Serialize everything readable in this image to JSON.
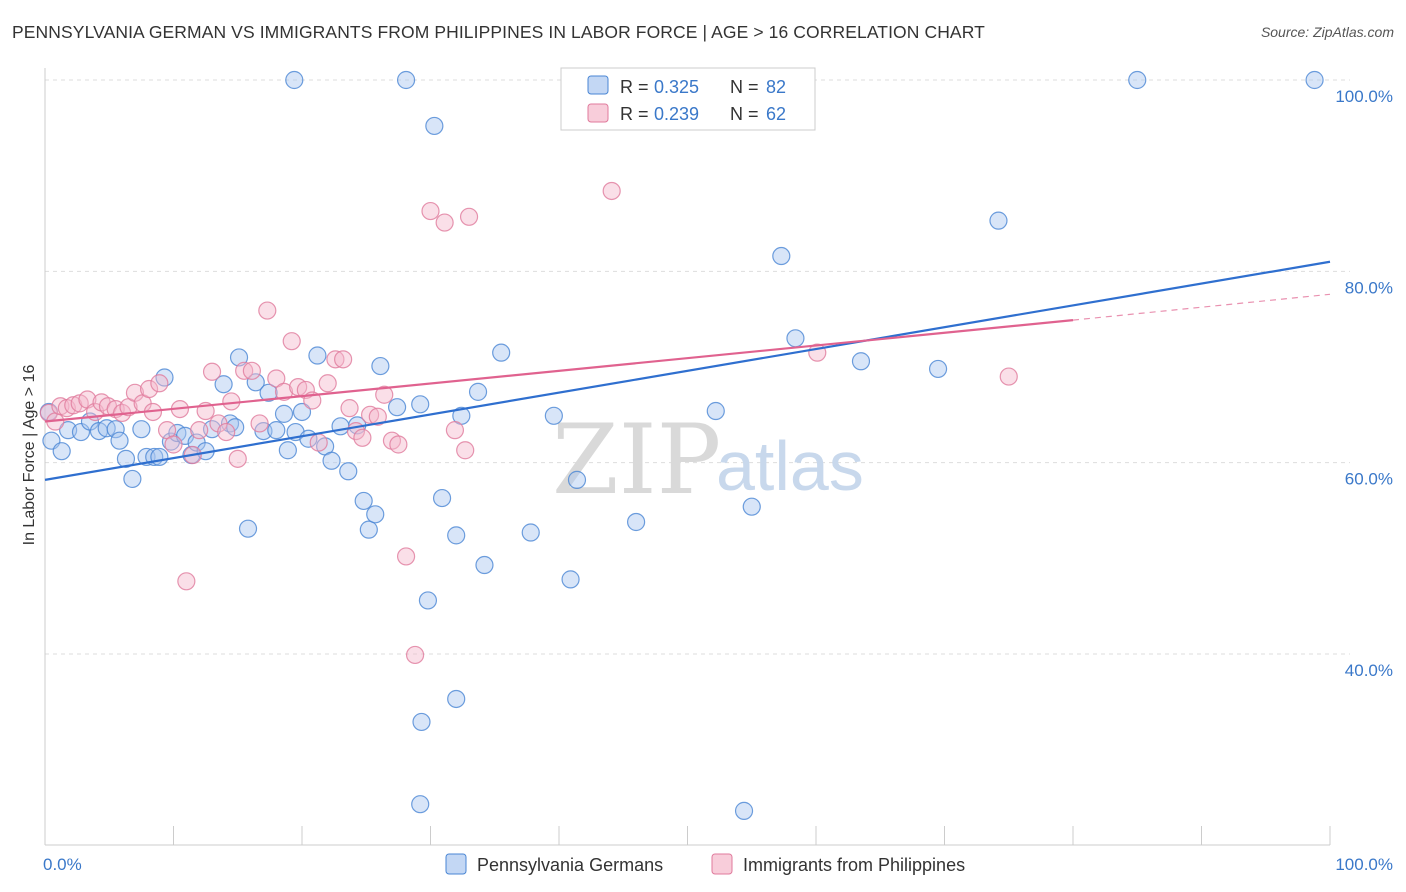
{
  "title": "PENNSYLVANIA GERMAN VS IMMIGRANTS FROM PHILIPPINES IN LABOR FORCE | AGE > 16 CORRELATION CHART",
  "source": "Source: ZipAtlas.com",
  "watermark": {
    "zip": "ZIP",
    "atlas": "atlas"
  },
  "legend": {
    "r_label": "R =",
    "n_label": "N =",
    "rows": [
      {
        "r": "0.325",
        "n": "82"
      },
      {
        "r": "0.239",
        "n": "62"
      }
    ]
  },
  "colors": {
    "blue_fill": "#a9c6ef",
    "blue_stroke": "#4a86d4",
    "blue_line": "#2f6fcf",
    "pink_fill": "#f5b8cb",
    "pink_stroke": "#e07a9c",
    "pink_line": "#e0628f",
    "axis_text": "#3a78c9",
    "grid": "#dddddd"
  },
  "chart_data": {
    "type": "scatter",
    "title": "PENNSYLVANIA GERMAN VS IMMIGRANTS FROM PHILIPPINES IN LABOR FORCE | AGE > 16 CORRELATION CHART",
    "xlabel": "",
    "ylabel": "In Labor Force | Age > 16",
    "xlim": [
      0,
      100
    ],
    "ylim": [
      20,
      102
    ],
    "x_tick_labels": [
      "0.0%",
      "100.0%"
    ],
    "y_tick_labels": [
      "40.0%",
      "60.0%",
      "80.0%",
      "100.0%"
    ],
    "y_ticks": [
      40,
      60,
      80,
      100
    ],
    "grid": true,
    "legend_position": "top-center",
    "series": [
      {
        "name": "Pennsylvania Germans",
        "color": "#4a86d4",
        "trend": {
          "x": [
            0,
            100
          ],
          "y": [
            58.2,
            81.0
          ]
        },
        "points": [
          [
            0.3,
            65.3
          ],
          [
            0.5,
            62.3
          ],
          [
            1.3,
            61.2
          ],
          [
            1.8,
            63.4
          ],
          [
            2.8,
            63.2
          ],
          [
            3.5,
            64.3
          ],
          [
            4.2,
            63.3
          ],
          [
            4.8,
            63.6
          ],
          [
            5.5,
            63.5
          ],
          [
            5.8,
            62.3
          ],
          [
            6.3,
            60.4
          ],
          [
            6.8,
            58.3
          ],
          [
            7.5,
            63.5
          ],
          [
            7.9,
            60.6
          ],
          [
            8.5,
            60.6
          ],
          [
            8.9,
            60.6
          ],
          [
            9.3,
            68.9
          ],
          [
            9.8,
            62.2
          ],
          [
            10.3,
            63.1
          ],
          [
            10.9,
            62.8
          ],
          [
            11.4,
            60.8
          ],
          [
            11.8,
            62.1
          ],
          [
            12.5,
            61.2
          ],
          [
            13.0,
            63.5
          ],
          [
            13.9,
            68.2
          ],
          [
            14.4,
            64.1
          ],
          [
            14.8,
            63.7
          ],
          [
            15.8,
            53.1
          ],
          [
            16.4,
            68.4
          ],
          [
            17.0,
            63.3
          ],
          [
            17.4,
            67.3
          ],
          [
            18.0,
            63.4
          ],
          [
            18.6,
            65.1
          ],
          [
            18.9,
            61.3
          ],
          [
            19.5,
            63.2
          ],
          [
            20.0,
            65.3
          ],
          [
            20.5,
            62.5
          ],
          [
            21.2,
            71.2
          ],
          [
            21.8,
            61.7
          ],
          [
            22.3,
            60.2
          ],
          [
            23.0,
            63.8
          ],
          [
            23.6,
            59.1
          ],
          [
            24.3,
            63.9
          ],
          [
            24.8,
            56.0
          ],
          [
            25.2,
            53.0
          ],
          [
            25.7,
            54.6
          ],
          [
            26.1,
            70.1
          ],
          [
            27.4,
            65.8
          ],
          [
            28.1,
            100.0
          ],
          [
            29.2,
            66.1
          ],
          [
            29.8,
            45.6
          ],
          [
            30.3,
            95.2
          ],
          [
            30.9,
            56.3
          ],
          [
            32.0,
            52.4
          ],
          [
            32.4,
            64.9
          ],
          [
            33.7,
            67.4
          ],
          [
            34.2,
            49.3
          ],
          [
            35.5,
            71.5
          ],
          [
            37.8,
            52.7
          ],
          [
            39.6,
            64.9
          ],
          [
            40.9,
            47.8
          ],
          [
            41.4,
            58.2
          ],
          [
            42.2,
            100.0
          ],
          [
            46.0,
            53.8
          ],
          [
            47.2,
            95.7
          ],
          [
            50.4,
            100.0
          ],
          [
            52.2,
            65.4
          ],
          [
            55.0,
            55.4
          ],
          [
            57.3,
            81.6
          ],
          [
            58.4,
            73.0
          ],
          [
            63.5,
            70.6
          ],
          [
            69.5,
            69.8
          ],
          [
            74.2,
            85.3
          ],
          [
            85.0,
            100.0
          ],
          [
            98.8,
            100.0
          ],
          [
            32.0,
            35.3
          ],
          [
            29.3,
            32.9
          ],
          [
            29.2,
            24.3
          ],
          [
            54.4,
            23.6
          ],
          [
            19.4,
            100.0
          ],
          [
            42.8,
            100.0
          ],
          [
            15.1,
            71.0
          ]
        ]
      },
      {
        "name": "Immigrants from Philippines",
        "color": "#e07a9c",
        "trend": {
          "x": [
            0,
            80
          ],
          "y": [
            64.3,
            74.9
          ]
        },
        "trend_dashed": {
          "x": [
            80,
            100
          ],
          "y": [
            74.9,
            77.6
          ]
        },
        "points": [
          [
            0.3,
            65.2
          ],
          [
            0.8,
            64.3
          ],
          [
            1.2,
            65.9
          ],
          [
            1.7,
            65.7
          ],
          [
            2.2,
            66.0
          ],
          [
            2.7,
            66.2
          ],
          [
            3.3,
            66.6
          ],
          [
            3.9,
            65.3
          ],
          [
            4.4,
            66.3
          ],
          [
            4.9,
            65.9
          ],
          [
            5.5,
            65.6
          ],
          [
            6.0,
            65.2
          ],
          [
            6.5,
            65.8
          ],
          [
            7.0,
            67.3
          ],
          [
            7.6,
            66.2
          ],
          [
            8.1,
            67.7
          ],
          [
            8.4,
            65.3
          ],
          [
            8.9,
            68.3
          ],
          [
            9.5,
            63.4
          ],
          [
            10.0,
            61.9
          ],
          [
            10.5,
            65.6
          ],
          [
            11.0,
            47.6
          ],
          [
            11.5,
            60.8
          ],
          [
            12.0,
            63.4
          ],
          [
            12.5,
            65.4
          ],
          [
            13.0,
            69.5
          ],
          [
            13.5,
            64.1
          ],
          [
            14.1,
            63.2
          ],
          [
            14.5,
            66.4
          ],
          [
            15.0,
            60.4
          ],
          [
            15.5,
            69.6
          ],
          [
            16.1,
            69.6
          ],
          [
            16.7,
            64.1
          ],
          [
            17.3,
            75.9
          ],
          [
            18.0,
            68.8
          ],
          [
            18.6,
            67.4
          ],
          [
            19.2,
            72.7
          ],
          [
            19.7,
            67.9
          ],
          [
            20.3,
            67.6
          ],
          [
            20.8,
            66.5
          ],
          [
            21.3,
            62.1
          ],
          [
            22.0,
            68.3
          ],
          [
            22.6,
            70.8
          ],
          [
            23.2,
            70.8
          ],
          [
            23.7,
            65.7
          ],
          [
            24.2,
            63.3
          ],
          [
            24.7,
            62.6
          ],
          [
            25.3,
            65.0
          ],
          [
            25.9,
            64.8
          ],
          [
            26.4,
            67.1
          ],
          [
            27.0,
            62.3
          ],
          [
            27.5,
            61.9
          ],
          [
            28.1,
            50.2
          ],
          [
            28.8,
            39.9
          ],
          [
            30.0,
            86.3
          ],
          [
            31.1,
            85.1
          ],
          [
            31.9,
            63.4
          ],
          [
            32.7,
            61.3
          ],
          [
            33.0,
            85.7
          ],
          [
            44.1,
            88.4
          ],
          [
            60.1,
            71.5
          ],
          [
            75.0,
            69.0
          ]
        ]
      }
    ]
  }
}
